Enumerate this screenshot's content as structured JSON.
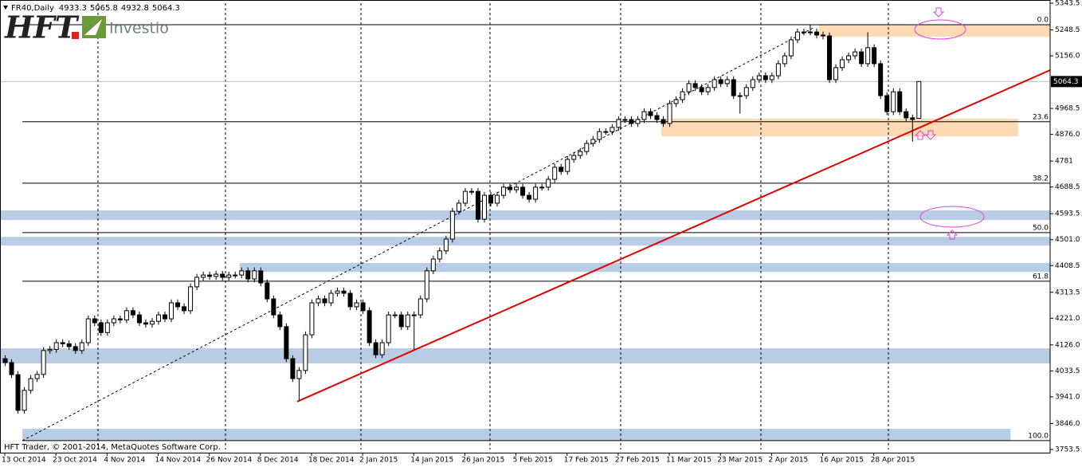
{
  "chart_data": {
    "type": "candlestick",
    "symbol": "FR40,Daily",
    "logo": {
      "brand": "HFT",
      "name": "Investio"
    },
    "copyright": "HFT Trader, © 2001-2014, MetaQuotes Software Corp.",
    "up_color": "#ffffff",
    "down_color": "#000000",
    "xlim": [
      -0.75,
      163.6
    ],
    "ylim": [
      3753.5,
      5343.5
    ],
    "yticks": [
      5343.5,
      5248.5,
      {
        "value": 5156,
        "label": "5156.0"
      },
      4968.5,
      {
        "value": 4876,
        "label": "4876.0"
      },
      4781,
      4688.5,
      4593.5,
      {
        "value": 4501,
        "label": "4501.0"
      },
      4408.5,
      4313.5,
      {
        "value": 4221,
        "label": "4221.0"
      },
      {
        "value": 4126,
        "label": "4126.0"
      },
      4033.5,
      {
        "value": 3941,
        "label": "3941.0"
      },
      {
        "value": 3846,
        "label": "3846.0"
      },
      3753.5
    ],
    "xticks": [
      {
        "value": 0,
        "label": "13 Oct 2014"
      },
      {
        "value": 8,
        "label": "23 Oct 2014"
      },
      {
        "value": 16,
        "label": "4 Nov 2014"
      },
      {
        "value": 24,
        "label": "14 Nov 2014"
      },
      {
        "value": 32,
        "label": "26 Nov 2014"
      },
      {
        "value": 40,
        "label": "8 Dec 2014"
      },
      {
        "value": 48,
        "label": "18 Dec 2014"
      },
      {
        "value": 56,
        "label": "2 Jan 2015"
      },
      {
        "value": 64,
        "label": "14 Jan 2015"
      },
      {
        "value": 72,
        "label": "26 Jan 2015"
      },
      {
        "value": 80,
        "label": "5 Feb 2015"
      },
      {
        "value": 88,
        "label": "17 Feb 2015"
      },
      {
        "value": 96,
        "label": "27 Feb 2015"
      },
      {
        "value": 104,
        "label": "11 Mar 2015"
      },
      {
        "value": 112,
        "label": "23 Mar 2015"
      },
      {
        "value": 120,
        "label": "2 Apr 2015"
      },
      {
        "value": 128,
        "label": "16 Apr 2015"
      },
      {
        "value": 136,
        "label": "28 Apr 2015"
      }
    ],
    "open": [
      4077,
      4063,
      4020,
      3893,
      3964,
      4006,
      4021,
      4106,
      4110,
      4134,
      4130,
      4120,
      4106,
      4134,
      4219,
      4205,
      4170,
      4205,
      4219,
      4215,
      4248,
      4233,
      4205,
      4200,
      4210,
      4233,
      4219,
      4276,
      4262,
      4248,
      4333,
      4367,
      4375,
      4370,
      4378,
      4367,
      4375,
      4375,
      4390,
      4361,
      4390,
      4347,
      4290,
      4233,
      4191,
      4077,
      4006,
      4035,
      4162,
      4276,
      4290,
      4276,
      4310,
      4318,
      4310,
      4262,
      4276,
      4248,
      4134,
      4091,
      4134,
      4233,
      4233,
      4191,
      4233,
      4233,
      4290,
      4390,
      4432,
      4461,
      4503,
      4602,
      4631,
      4673,
      4673,
      4574,
      4659,
      4631,
      4659,
      4688,
      4679,
      4688,
      4659,
      4645,
      4688,
      4688,
      4716,
      4759,
      4744,
      4787,
      4801,
      4815,
      4844,
      4858,
      4886,
      4886,
      4901,
      4929,
      4929,
      4915,
      4929,
      4957,
      4943,
      4929,
      4915,
      4986,
      5000,
      5028,
      5057,
      5043,
      5028,
      5043,
      5071,
      5057,
      5071,
      5014,
      5014,
      5043,
      5071,
      5085,
      5071,
      5085,
      5128,
      5156,
      5213,
      5241,
      5241,
      5241,
      5230,
      5227,
      5071,
      5114,
      5142,
      5156,
      5170,
      5128,
      5185,
      5128,
      5014,
      4957,
      5028,
      4957,
      4935,
      4933.3
    ],
    "high": [
      4089,
      4075,
      4032,
      3976,
      4018,
      4033,
      4118,
      4122,
      4146,
      4146,
      4142,
      4132,
      4146,
      4231,
      4231,
      4217,
      4217,
      4231,
      4231,
      4260,
      4260,
      4245,
      4217,
      4222,
      4245,
      4245,
      4288,
      4288,
      4274,
      4345,
      4379,
      4387,
      4387,
      4390,
      4390,
      4387,
      4387,
      4402,
      4402,
      4402,
      4402,
      4359,
      4302,
      4245,
      4203,
      4089,
      4047,
      4174,
      4288,
      4302,
      4302,
      4322,
      4330,
      4330,
      4322,
      4288,
      4288,
      4260,
      4146,
      4146,
      4245,
      4245,
      4245,
      4245,
      4245,
      4302,
      4402,
      4444,
      4473,
      4515,
      4614,
      4643,
      4685,
      4685,
      4685,
      4671,
      4671,
      4671,
      4700,
      4700,
      4700,
      4700,
      4671,
      4700,
      4700,
      4728,
      4771,
      4771,
      4799,
      4813,
      4827,
      4856,
      4870,
      4898,
      4898,
      4913,
      4941,
      4941,
      4941,
      4941,
      4969,
      4969,
      4955,
      4941,
      4998,
      5012,
      5040,
      5069,
      5069,
      5055,
      5055,
      5083,
      5083,
      5083,
      5083,
      5026,
      5055,
      5083,
      5097,
      5097,
      5097,
      5140,
      5168,
      5225,
      5253,
      5253,
      5268,
      5253,
      5242,
      5239,
      5126,
      5154,
      5168,
      5182,
      5182,
      5240,
      5197,
      5140,
      5026,
      5040,
      5040,
      4969,
      4947,
      5065.8
    ],
    "low": [
      4051,
      4008,
      3881,
      3881,
      3952,
      3994,
      4009,
      4094,
      4098,
      4118,
      4108,
      4094,
      4094,
      4122,
      4193,
      4158,
      4158,
      4193,
      4203,
      4203,
      4221,
      4193,
      4188,
      4188,
      4198,
      4207,
      4207,
      4250,
      4236,
      4236,
      4321,
      4355,
      4358,
      4358,
      4355,
      4355,
      4363,
      4363,
      4349,
      4349,
      4335,
      4278,
      4221,
      4179,
      4065,
      3994,
      3930,
      4023,
      4150,
      4264,
      4264,
      4264,
      4298,
      4298,
      4250,
      4250,
      4236,
      4122,
      4079,
      4079,
      4122,
      4221,
      4179,
      4179,
      4110,
      4221,
      4278,
      4378,
      4420,
      4449,
      4491,
      4590,
      4619,
      4661,
      4562,
      4562,
      4619,
      4619,
      4647,
      4667,
      4667,
      4647,
      4633,
      4633,
      4676,
      4676,
      4704,
      4732,
      4732,
      4775,
      4789,
      4803,
      4832,
      4846,
      4874,
      4874,
      4889,
      4917,
      4903,
      4903,
      4917,
      4931,
      4917,
      4903,
      4903,
      4974,
      4988,
      5016,
      5031,
      5016,
      5016,
      5031,
      5045,
      5045,
      5002,
      4950,
      5002,
      5031,
      5059,
      5059,
      5059,
      5073,
      5116,
      5144,
      5201,
      5229,
      5229,
      5218,
      5215,
      5059,
      5059,
      5102,
      5130,
      5144,
      5116,
      5116,
      5116,
      5002,
      4945,
      4945,
      4945,
      4923,
      4850,
      4932.8
    ],
    "close": [
      4063,
      4020,
      3893,
      3964,
      4006,
      4021,
      4106,
      4110,
      4134,
      4130,
      4120,
      4106,
      4134,
      4219,
      4205,
      4170,
      4205,
      4219,
      4215,
      4248,
      4233,
      4205,
      4200,
      4210,
      4233,
      4219,
      4276,
      4262,
      4248,
      4333,
      4367,
      4375,
      4370,
      4378,
      4367,
      4375,
      4375,
      4390,
      4361,
      4390,
      4347,
      4290,
      4233,
      4191,
      4077,
      4006,
      4035,
      4162,
      4276,
      4290,
      4276,
      4310,
      4318,
      4310,
      4262,
      4276,
      4248,
      4134,
      4091,
      4134,
      4233,
      4233,
      4191,
      4233,
      4233,
      4290,
      4390,
      4432,
      4461,
      4503,
      4602,
      4631,
      4673,
      4673,
      4574,
      4659,
      4631,
      4659,
      4688,
      4679,
      4688,
      4659,
      4645,
      4688,
      4688,
      4716,
      4759,
      4744,
      4787,
      4801,
      4815,
      4844,
      4858,
      4886,
      4886,
      4901,
      4929,
      4929,
      4915,
      4929,
      4957,
      4943,
      4929,
      4915,
      4986,
      5000,
      5028,
      5057,
      5043,
      5028,
      5043,
      5071,
      5057,
      5071,
      5014,
      5014,
      5043,
      5071,
      5085,
      5071,
      5085,
      5128,
      5156,
      5213,
      5241,
      5241,
      5241,
      5230,
      5227,
      5071,
      5114,
      5142,
      5156,
      5170,
      5128,
      5185,
      5128,
      5014,
      4957,
      5028,
      4957,
      4935,
      4929,
      5064.3
    ],
    "fib_levels": [
      {
        "label": "0.0",
        "value": 5267
      },
      {
        "label": "23.6",
        "value": 4921
      },
      {
        "label": "38.2",
        "value": 4702
      },
      {
        "label": "50.0",
        "value": 4526
      },
      {
        "label": "61.8",
        "value": 4353
      },
      {
        "label": "100.0",
        "value": 3785
      }
    ],
    "fib_start": 2.75,
    "zones": [
      {
        "from": 5267,
        "to": 5224,
        "x": [
          127.4,
          163.6
        ],
        "color": "#fcdab4"
      },
      {
        "from": 4932,
        "to": 4869,
        "x": [
          102.75,
          158.6
        ],
        "color": "#fcdab4"
      },
      {
        "from": 4605,
        "to": 4571,
        "x": [
          -0.75,
          163.6
        ],
        "color": "#b8cce4"
      },
      {
        "from": 4511,
        "to": 4480,
        "x": [
          -0.75,
          163.6
        ],
        "color": "#b8cce4"
      },
      {
        "from": 4418,
        "to": 4386,
        "x": [
          36.75,
          163.6
        ],
        "color": "#b8cce4"
      },
      {
        "from": 4114,
        "to": 4060,
        "x": [
          -0.75,
          163.6
        ],
        "color": "#b8cce4"
      },
      {
        "from": 3827,
        "to": 3785,
        "x": [
          2.75,
          157.4
        ],
        "color": "#b8cce4"
      }
    ],
    "trendlines": [
      {
        "points": [
          [
            45.75,
            3924
          ],
          [
            163.6,
            5105
          ]
        ],
        "color": "#e00000",
        "style": "solid"
      },
      {
        "points": [
          [
            2.75,
            3785
          ],
          [
            126.5,
            5255
          ]
        ],
        "color": "#000000",
        "style": "dashed"
      }
    ]
  }
}
